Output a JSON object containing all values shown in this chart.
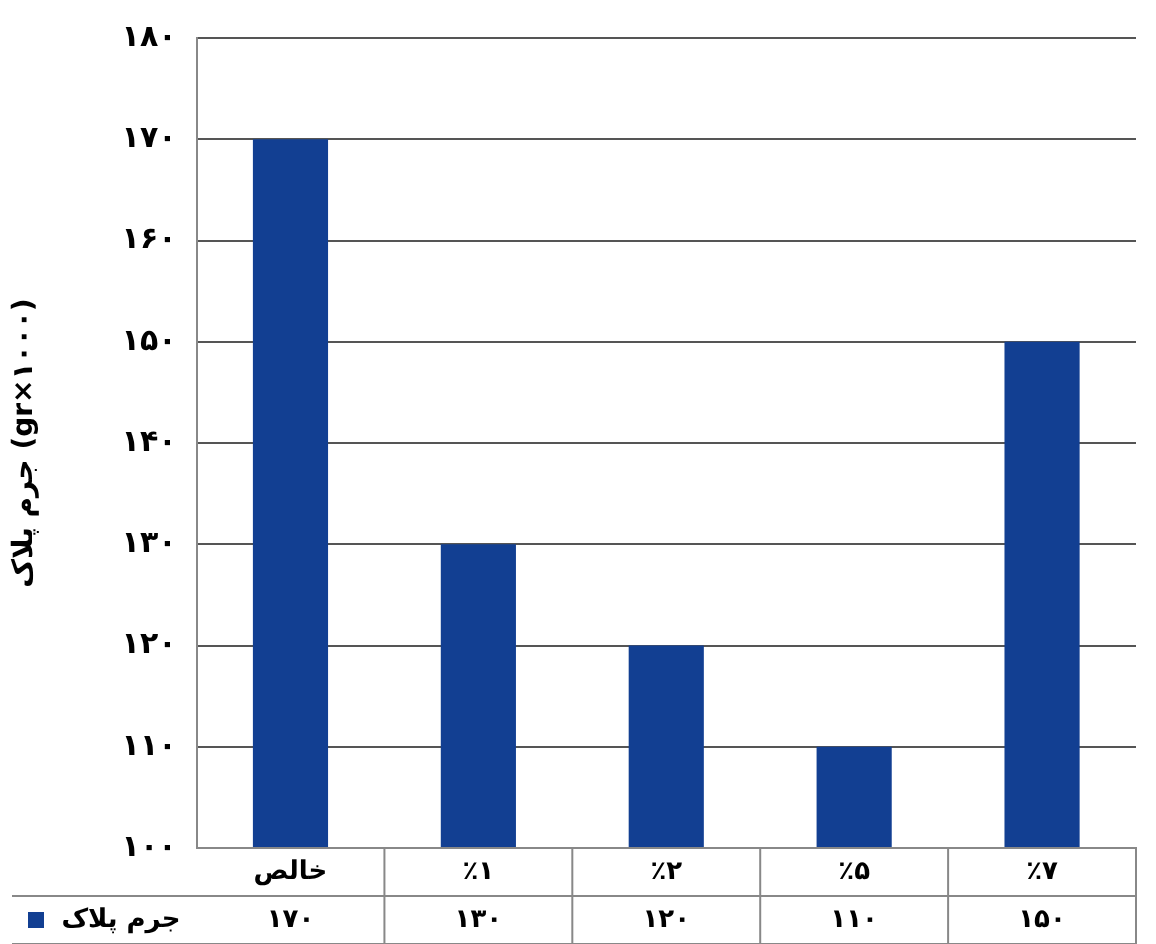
{
  "chart_data": {
    "type": "bar",
    "ylabel": "جرم پلاک (gr×۱۰۰۰)",
    "categories": [
      "خالص",
      "٪۱",
      "٪۲",
      "٪۵",
      "٪۷"
    ],
    "series": [
      {
        "name": "جرم پلاک",
        "color": "#123f92",
        "values": [
          170,
          130,
          120,
          110,
          150
        ],
        "value_labels": [
          "۱۷۰",
          "۱۳۰",
          "۱۲۰",
          "۱۱۰",
          "۱۵۰"
        ]
      }
    ],
    "ylim": [
      100,
      180
    ],
    "yticks": [
      {
        "value": 100,
        "label": "۱۰۰"
      },
      {
        "value": 110,
        "label": "۱۱۰"
      },
      {
        "value": 120,
        "label": "۱۲۰"
      },
      {
        "value": 130,
        "label": "۱۳۰"
      },
      {
        "value": 140,
        "label": "۱۴۰"
      },
      {
        "value": 150,
        "label": "۱۵۰"
      },
      {
        "value": 160,
        "label": "۱۶۰"
      },
      {
        "value": 170,
        "label": "۱۷۰"
      },
      {
        "value": 180,
        "label": "۱۸۰"
      }
    ],
    "grid": "y",
    "legend": "bottom"
  }
}
